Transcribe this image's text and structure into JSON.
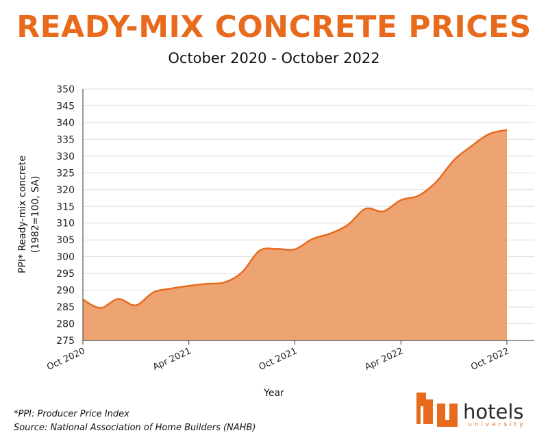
{
  "colors": {
    "accent": "#e86a1c",
    "fill": "#eea373",
    "grid": "#dddddd",
    "axis": "#333333"
  },
  "chart_data": {
    "type": "area",
    "title": "READY-MIX CONCRETE PRICES",
    "subtitle": "October 2020 - October 2022",
    "xlabel": "Year",
    "ylabel": [
      "PPI* Ready-mix concrete",
      "(1982=100, SA)"
    ],
    "ylim": [
      275,
      350
    ],
    "yticks": [
      275,
      280,
      285,
      290,
      295,
      300,
      305,
      310,
      315,
      320,
      325,
      330,
      335,
      340,
      345,
      350
    ],
    "xticks": [
      "Oct 2020",
      "Apr 2021",
      "Oct 2021",
      "Apr 2022",
      "Oct 2022"
    ],
    "xtick_positions": [
      0,
      6,
      12,
      18,
      24
    ],
    "grid": "horizontal",
    "legend": "none",
    "x": [
      "Oct 2020",
      "Nov 2020",
      "Dec 2020",
      "Jan 2021",
      "Feb 2021",
      "Mar 2021",
      "Apr 2021",
      "May 2021",
      "Jun 2021",
      "Jul 2021",
      "Aug 2021",
      "Sep 2021",
      "Oct 2021",
      "Nov 2021",
      "Dec 2021",
      "Jan 2022",
      "Feb 2022",
      "Mar 2022",
      "Apr 2022",
      "May 2022",
      "Jun 2022",
      "Jul 2022",
      "Aug 2022",
      "Sep 2022",
      "Oct 2022"
    ],
    "values": [
      287.2,
      284.7,
      287.4,
      285.5,
      289.4,
      290.5,
      291.3,
      291.9,
      292.3,
      295.3,
      301.8,
      302.3,
      302.2,
      305.3,
      306.9,
      309.5,
      314.3,
      313.5,
      316.9,
      318.2,
      322.3,
      328.8,
      333.0,
      336.6,
      337.8
    ]
  },
  "footnotes": {
    "ppi": "*PPI: Producer Price Index",
    "source": "Source: National Association of Home Builders (NAHB)"
  },
  "logo": {
    "word": "hotels",
    "sub": "university"
  }
}
